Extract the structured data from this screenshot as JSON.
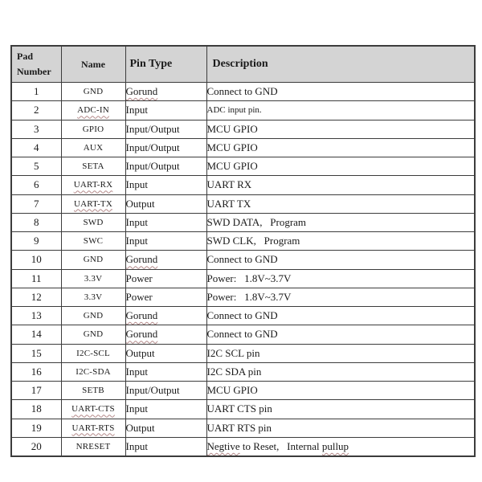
{
  "colors": {
    "page_bg": "#ffffff",
    "header_bg": "#d4d4d4",
    "border": "#3c3c3c",
    "text": "#1a1a1a",
    "squiggle": "#b48a8a"
  },
  "table": {
    "headers": {
      "pad_line1": "Pad",
      "pad_line2": "Number",
      "name": "Name",
      "pin_type": "Pin Type",
      "description": "Description"
    },
    "rows": [
      {
        "pad": "1",
        "name": [
          {
            "t": "GND"
          }
        ],
        "type": [
          {
            "t": "Gorund",
            "sq": true
          }
        ],
        "desc": [
          {
            "t": "Connect to GND"
          }
        ]
      },
      {
        "pad": "2",
        "name": [
          {
            "t": "ADC-IN",
            "sq": true
          }
        ],
        "type": [
          {
            "t": "Input"
          }
        ],
        "desc": [
          {
            "t": "ADC input pin."
          }
        ],
        "desc_small": true
      },
      {
        "pad": "3",
        "name": [
          {
            "t": "GPIO"
          }
        ],
        "type": [
          {
            "t": "Input/Output"
          }
        ],
        "desc": [
          {
            "t": "MCU GPIO"
          }
        ]
      },
      {
        "pad": "4",
        "name": [
          {
            "t": "AUX"
          }
        ],
        "type": [
          {
            "t": "Input/Output"
          }
        ],
        "desc": [
          {
            "t": "MCU GPIO"
          }
        ]
      },
      {
        "pad": "5",
        "name": [
          {
            "t": "SETA"
          }
        ],
        "type": [
          {
            "t": "Input/Output"
          }
        ],
        "desc": [
          {
            "t": "MCU GPIO"
          }
        ]
      },
      {
        "pad": "6",
        "name": [
          {
            "t": "UART-RX",
            "sq": true
          }
        ],
        "type": [
          {
            "t": "Input"
          }
        ],
        "desc": [
          {
            "t": "UART RX"
          }
        ]
      },
      {
        "pad": "7",
        "name": [
          {
            "t": "UART-TX",
            "sq": true
          }
        ],
        "type": [
          {
            "t": "Output"
          }
        ],
        "desc": [
          {
            "t": "UART TX"
          }
        ]
      },
      {
        "pad": "8",
        "name": [
          {
            "t": "SWD"
          }
        ],
        "type": [
          {
            "t": "Input"
          }
        ],
        "desc": [
          {
            "t": "SWD DATA， Program"
          }
        ]
      },
      {
        "pad": "9",
        "name": [
          {
            "t": "SWC"
          }
        ],
        "type": [
          {
            "t": "Input"
          }
        ],
        "desc": [
          {
            "t": "SWD CLK， Program"
          }
        ]
      },
      {
        "pad": "10",
        "name": [
          {
            "t": "GND"
          }
        ],
        "type": [
          {
            "t": "Gorund",
            "sq": true
          }
        ],
        "desc": [
          {
            "t": "Connect to GND"
          }
        ]
      },
      {
        "pad": "11",
        "name": [
          {
            "t": "3.3V"
          }
        ],
        "type": [
          {
            "t": "Power"
          }
        ],
        "desc": [
          {
            "t": "Power： 1.8V~3.7V"
          }
        ]
      },
      {
        "pad": "12",
        "name": [
          {
            "t": "3.3V"
          }
        ],
        "type": [
          {
            "t": "Power"
          }
        ],
        "desc": [
          {
            "t": "Power： 1.8V~3.7V"
          }
        ]
      },
      {
        "pad": "13",
        "name": [
          {
            "t": "GND"
          }
        ],
        "type": [
          {
            "t": "Gorund",
            "sq": true
          }
        ],
        "desc": [
          {
            "t": "Connect to GND"
          }
        ]
      },
      {
        "pad": "14",
        "name": [
          {
            "t": "GND"
          }
        ],
        "type": [
          {
            "t": "Gorund",
            "sq": true
          }
        ],
        "desc": [
          {
            "t": "Connect to GND"
          }
        ]
      },
      {
        "pad": "15",
        "name": [
          {
            "t": "I2C-SCL"
          }
        ],
        "type": [
          {
            "t": "Output"
          }
        ],
        "desc": [
          {
            "t": "I2C SCL pin"
          }
        ]
      },
      {
        "pad": "16",
        "name": [
          {
            "t": "I2C-SDA"
          }
        ],
        "type": [
          {
            "t": "Input"
          }
        ],
        "desc": [
          {
            "t": "I2C SDA pin"
          }
        ]
      },
      {
        "pad": "17",
        "name": [
          {
            "t": "SETB"
          }
        ],
        "type": [
          {
            "t": "Input/Output"
          }
        ],
        "desc": [
          {
            "t": "MCU GPIO"
          }
        ]
      },
      {
        "pad": "18",
        "name": [
          {
            "t": "UART-CTS",
            "sq": true
          }
        ],
        "type": [
          {
            "t": "Input"
          }
        ],
        "desc": [
          {
            "t": "UART CTS pin"
          }
        ]
      },
      {
        "pad": "19",
        "name": [
          {
            "t": "UART-RTS",
            "sq": true
          }
        ],
        "type": [
          {
            "t": "Output"
          }
        ],
        "desc": [
          {
            "t": "UART RTS pin"
          }
        ]
      },
      {
        "pad": "20",
        "name": [
          {
            "t": "NRESET"
          }
        ],
        "type": [
          {
            "t": "Input"
          }
        ],
        "desc": [
          {
            "t": "Negtive",
            "sq": true
          },
          {
            "t": " to Reset， Internal "
          },
          {
            "t": "pullup",
            "sq": true
          }
        ]
      }
    ]
  }
}
